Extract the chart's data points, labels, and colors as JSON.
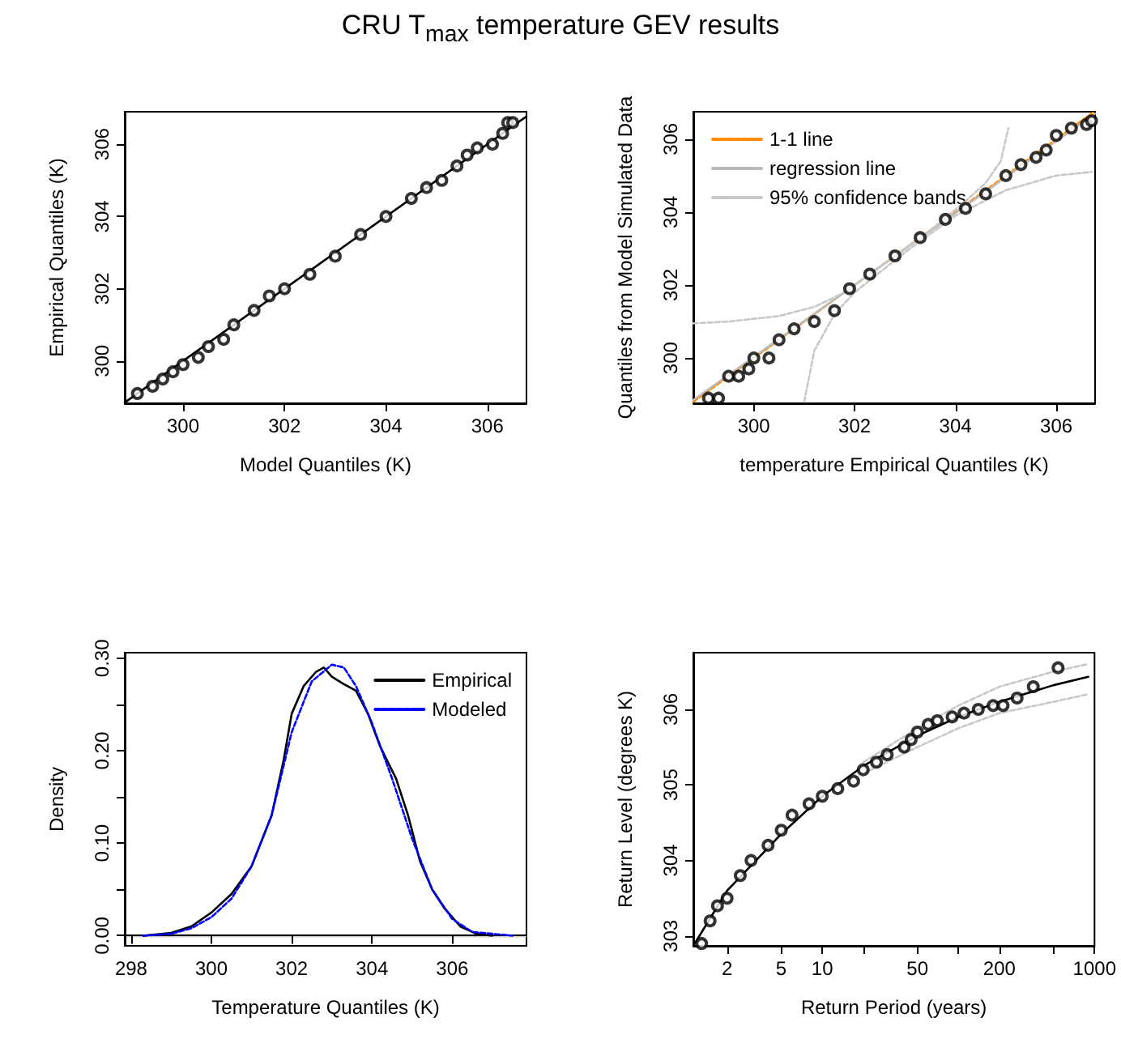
{
  "chart_data": [
    {
      "type": "scatter",
      "title": "CRU T$_{max}$ temperature GEV results",
      "xlabel": "Model Quantiles (K)",
      "ylabel": "Empirical Quantiles (K)",
      "xlim": [
        298.85,
        306.77
      ],
      "ylim": [
        298.83,
        306.9
      ],
      "xticks": [
        300,
        302,
        304,
        306
      ],
      "yticks": [
        300,
        302,
        304,
        306
      ],
      "marker": "circle",
      "series": [
        {
          "color": "#000000",
          "x": [
            299.1,
            299.4,
            299.6,
            299.8,
            300.0,
            300.3,
            300.5,
            300.8,
            301.0,
            301.4,
            301.7,
            302.0,
            302.5,
            303.0,
            303.5,
            304.0,
            304.5,
            304.8,
            305.1,
            305.4,
            305.6,
            305.8,
            306.1,
            306.3,
            306.4,
            306.5
          ],
          "values": [
            299.1,
            299.3,
            299.5,
            299.7,
            299.9,
            300.1,
            300.4,
            300.6,
            301.0,
            301.4,
            301.8,
            302.0,
            302.4,
            302.9,
            303.5,
            304.0,
            304.5,
            304.8,
            305.0,
            305.4,
            305.7,
            305.9,
            306.0,
            306.3,
            306.6,
            306.6
          ]
        },
        {
          "type": "line",
          "color": "#000000",
          "marker": "none",
          "x": [
            298.85,
            306.77
          ],
          "values": [
            298.85,
            306.77
          ]
        }
      ]
    },
    {
      "type": "scatter",
      "xlabel": "temperature Empirical Quantiles (K)",
      "ylabel": "Quantiles from Model Simulated Data",
      "xlim": [
        298.8,
        306.77
      ],
      "ylim": [
        298.76,
        306.75
      ],
      "xticks": [
        300,
        302,
        304,
        306
      ],
      "yticks": [
        300,
        302,
        304,
        306
      ],
      "marker": "circle",
      "legend": "top left",
      "series": [
        {
          "color": "#000000",
          "x": [
            299.1,
            299.3,
            299.5,
            299.7,
            299.9,
            300.0,
            300.3,
            300.5,
            300.8,
            301.2,
            301.6,
            301.9,
            302.3,
            302.8,
            303.3,
            303.8,
            304.2,
            304.6,
            305.0,
            305.3,
            305.6,
            305.8,
            306.0,
            306.3,
            306.6,
            306.7
          ],
          "values": [
            298.9,
            298.9,
            299.5,
            299.5,
            299.7,
            300.0,
            300.0,
            300.5,
            300.8,
            301.0,
            301.3,
            301.9,
            302.3,
            302.8,
            303.3,
            303.8,
            304.1,
            304.5,
            305.0,
            305.3,
            305.5,
            305.7,
            306.1,
            306.3,
            306.4,
            306.5
          ]
        },
        {
          "type": "line",
          "name": "1-1 line",
          "color": "#ff8c00",
          "line_style": "dashed",
          "marker": "none",
          "x": [
            298.8,
            306.75
          ],
          "values": [
            298.8,
            306.75
          ]
        },
        {
          "type": "line",
          "name": "regression line",
          "color": "#bbbbbb",
          "line_style": "solid",
          "marker": "none",
          "x": [
            298.8,
            306.77
          ],
          "values": [
            298.85,
            306.7
          ]
        },
        {
          "type": "line",
          "name": "95% confidence bands",
          "color": "#c8c8c8",
          "line_style": "dashed",
          "marker": "none",
          "x": [
            298.8,
            299.5,
            300.5,
            301.2,
            301.8,
            302.5,
            303.5,
            304.2,
            304.6,
            304.9,
            305.05
          ],
          "values": [
            300.95,
            301.0,
            301.15,
            301.4,
            301.8,
            302.5,
            303.5,
            304.3,
            304.8,
            305.4,
            306.3
          ]
        },
        {
          "type": "line",
          "color": "#c8c8c8",
          "line_style": "dashed",
          "marker": "none",
          "x": [
            301.0,
            301.2,
            301.6,
            302.0,
            303.0,
            304.0,
            305.0,
            306.0,
            306.7
          ],
          "values": [
            298.8,
            300.2,
            301.2,
            301.8,
            302.9,
            303.9,
            304.6,
            305.0,
            305.1
          ]
        }
      ]
    },
    {
      "type": "line",
      "xlabel": "Temperature Quantiles (K)",
      "ylabel": "Density",
      "xlim": [
        297.84,
        307.85
      ],
      "ylim": [
        -0.011,
        0.306
      ],
      "xticks": [
        298,
        300,
        302,
        304,
        306
      ],
      "yticks": [
        {
          "value": 0,
          "label": "0.00"
        },
        {
          "value": 0.05,
          "label": null
        },
        {
          "value": 0.1,
          "label": "0.10"
        },
        {
          "value": 0.15,
          "label": null
        },
        {
          "value": 0.2,
          "label": "0.20"
        },
        {
          "value": 0.25,
          "label": null
        },
        {
          "value": 0.3,
          "label": "0.30"
        }
      ],
      "legend": "top right",
      "marker": "none",
      "ref_lines": [
        {
          "axis": "y",
          "value": 0,
          "color": "#cccccc"
        }
      ],
      "series": [
        {
          "name": "Empirical",
          "color": "#000000",
          "line_style": "solid",
          "x": [
            298.3,
            299,
            299.5,
            300,
            300.5,
            301,
            301.5,
            301.8,
            302,
            302.3,
            302.6,
            302.8,
            303.0,
            303.3,
            303.6,
            303.9,
            304.2,
            304.6,
            304.9,
            305.2,
            305.5,
            305.8,
            306.2,
            306.6,
            307
          ],
          "values": [
            0,
            0.003,
            0.01,
            0.025,
            0.045,
            0.075,
            0.13,
            0.19,
            0.24,
            0.27,
            0.285,
            0.29,
            0.28,
            0.272,
            0.265,
            0.24,
            0.205,
            0.17,
            0.13,
            0.08,
            0.05,
            0.03,
            0.01,
            0.002,
            0
          ]
        },
        {
          "name": "Modeled",
          "color": "#0000ff",
          "line_style": "dashed",
          "x": [
            298.3,
            299,
            299.5,
            300,
            300.5,
            301,
            301.5,
            302,
            302.5,
            303,
            303.3,
            303.6,
            304,
            304.5,
            305,
            305.5,
            306,
            306.5,
            307.5
          ],
          "values": [
            0,
            0.002,
            0.008,
            0.02,
            0.04,
            0.075,
            0.13,
            0.22,
            0.275,
            0.293,
            0.29,
            0.27,
            0.23,
            0.17,
            0.105,
            0.05,
            0.018,
            0.004,
            0
          ]
        }
      ]
    },
    {
      "type": "scatter",
      "xlabel": "Return Period (years)",
      "ylabel": "Return Level (degrees K)",
      "log": "x",
      "xlim": [
        1.13,
        1000
      ],
      "ylim": [
        302.87,
        306.75
      ],
      "xticks": [
        2,
        5,
        10,
        {
          "value": 20,
          "label": null
        },
        50,
        {
          "value": 100,
          "label": null
        },
        200,
        {
          "value": 500,
          "label": null
        },
        1000
      ],
      "yticks": [
        303,
        304,
        305,
        306
      ],
      "marker": "circle",
      "series": [
        {
          "color": "#000000",
          "x": [
            1.3,
            1.5,
            1.7,
            2,
            2.5,
            3,
            4,
            5,
            6,
            8,
            10,
            13,
            17,
            20,
            25,
            30,
            40,
            45,
            50,
            60,
            70,
            90,
            110,
            140,
            180,
            213,
            270,
            355,
            540
          ],
          "values": [
            302.9,
            303.2,
            303.4,
            303.5,
            303.8,
            304.0,
            304.2,
            304.4,
            304.6,
            304.75,
            304.85,
            304.95,
            305.05,
            305.2,
            305.3,
            305.4,
            305.5,
            305.6,
            305.7,
            305.8,
            305.85,
            305.9,
            305.95,
            306.0,
            306.05,
            306.05,
            306.15,
            306.3,
            306.55
          ]
        },
        {
          "type": "line",
          "color": "#000000",
          "marker": "none",
          "line_style": "solid",
          "x": [
            1.13,
            2,
            5,
            10,
            20,
            50,
            100,
            200,
            500,
            900
          ],
          "values": [
            302.87,
            303.6,
            304.35,
            304.85,
            305.25,
            305.65,
            305.9,
            306.1,
            306.32,
            306.43
          ]
        },
        {
          "type": "line",
          "color": "#c8c8c8",
          "marker": "none",
          "line_style": "dashed",
          "x": [
            20,
            50,
            100,
            200,
            500,
            900
          ],
          "values": [
            305.3,
            305.75,
            306.05,
            306.3,
            306.5,
            306.6
          ]
        },
        {
          "type": "line",
          "color": "#c8c8c8",
          "marker": "none",
          "line_style": "dashed",
          "x": [
            20,
            50,
            100,
            200,
            500,
            900
          ],
          "values": [
            305.15,
            305.5,
            305.75,
            305.95,
            306.1,
            306.2
          ]
        }
      ]
    }
  ]
}
